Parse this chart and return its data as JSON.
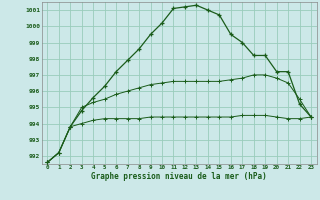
{
  "title": "Graphe pression niveau de la mer (hPa)",
  "background_color": "#cce8e8",
  "grid_color": "#99ccbb",
  "line_color": "#1a5c1a",
  "hours": [
    0,
    1,
    2,
    3,
    4,
    5,
    6,
    7,
    8,
    9,
    10,
    11,
    12,
    13,
    14,
    15,
    16,
    17,
    18,
    19,
    20,
    21,
    22,
    23
  ],
  "series_main": [
    991.6,
    992.2,
    993.8,
    994.8,
    995.6,
    996.3,
    997.2,
    997.9,
    998.6,
    999.5,
    1000.2,
    1001.1,
    1001.2,
    1001.3,
    1001.0,
    1000.7,
    999.5,
    999.0,
    998.2,
    998.2,
    997.2,
    997.2,
    995.2,
    994.4
  ],
  "series_min": [
    991.6,
    992.2,
    993.8,
    994.0,
    994.2,
    994.3,
    994.3,
    994.3,
    994.3,
    994.4,
    994.4,
    994.4,
    994.4,
    994.4,
    994.4,
    994.4,
    994.4,
    994.5,
    994.5,
    994.5,
    994.4,
    994.3,
    994.3,
    994.4
  ],
  "series_max": [
    991.6,
    992.2,
    993.8,
    995.0,
    995.3,
    995.5,
    995.8,
    996.0,
    996.2,
    996.4,
    996.5,
    996.6,
    996.6,
    996.6,
    996.6,
    996.6,
    996.7,
    996.8,
    997.0,
    997.0,
    996.8,
    996.5,
    995.5,
    994.4
  ],
  "ylim": [
    991.5,
    1001.5
  ],
  "yticks": [
    992,
    993,
    994,
    995,
    996,
    997,
    998,
    999,
    1000,
    1001
  ],
  "xlim_min": -0.5,
  "xlim_max": 23.5
}
